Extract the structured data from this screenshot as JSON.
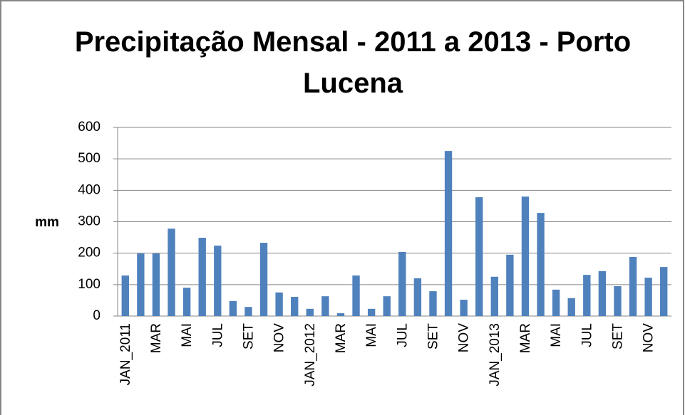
{
  "chart_data": {
    "type": "bar",
    "title": "Precipitação Mensal - 2011 a 2013 - Porto Lucena",
    "y_label": "mm",
    "categories": [
      "JAN_2011",
      null,
      "MAR",
      null,
      "MAI",
      null,
      "JUL",
      null,
      "SET",
      null,
      "NOV",
      null,
      "JAN_2012",
      null,
      "MAR",
      null,
      "MAI",
      null,
      "JUL",
      null,
      "SET",
      null,
      "NOV",
      null,
      "JAN_2013",
      null,
      "MAR",
      null,
      "MAI",
      null,
      "JUL",
      null,
      "SET",
      null,
      "NOV",
      null
    ],
    "values": [
      129,
      199,
      199,
      278,
      90,
      249,
      224,
      48,
      29,
      233,
      75,
      61,
      23,
      63,
      9,
      129,
      23,
      63,
      204,
      120,
      79,
      525,
      52,
      378,
      125,
      195,
      380,
      328,
      84,
      57,
      131,
      143,
      95,
      188,
      122,
      156
    ],
    "color": "#4f81bd",
    "ylim": [
      0,
      600
    ],
    "yticks": [
      0,
      100,
      200,
      300,
      400,
      500,
      600
    ],
    "grid": true
  }
}
